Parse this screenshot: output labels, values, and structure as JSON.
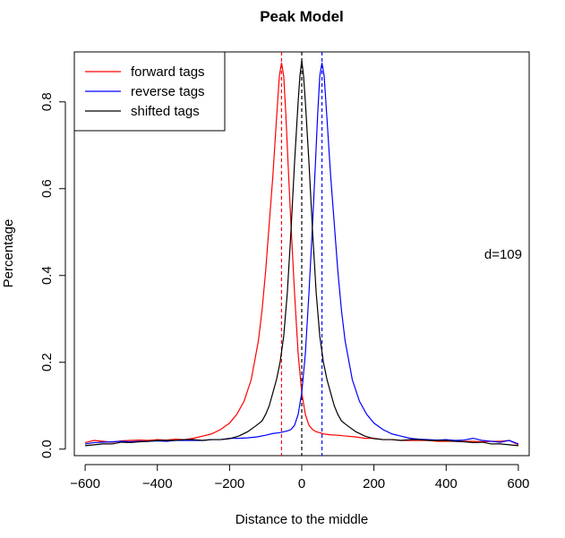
{
  "chart_data": {
    "type": "line",
    "title": "Peak Model",
    "xlabel": "Distance to the middle",
    "ylabel": "Percentage",
    "xlim": [
      -630,
      630
    ],
    "ylim": [
      -0.015,
      0.915
    ],
    "xticks": [
      -600,
      -400,
      -200,
      0,
      200,
      400,
      600
    ],
    "xtick_labels": [
      "−600",
      "−400",
      "−200",
      "0",
      "200",
      "400",
      "600"
    ],
    "yticks": [
      0.0,
      0.2,
      0.4,
      0.6,
      0.8
    ],
    "ytick_labels": [
      "0.0",
      "0.2",
      "0.4",
      "0.6",
      "0.8"
    ],
    "grid": false,
    "legend_position": "top-left",
    "annotation": "d=109",
    "series": [
      {
        "name": "forward tags",
        "color": "#ff0000",
        "x": [
          -600,
          -575,
          -550,
          -525,
          -500,
          -475,
          -450,
          -425,
          -400,
          -375,
          -350,
          -325,
          -300,
          -275,
          -250,
          -225,
          -200,
          -180,
          -160,
          -140,
          -120,
          -110,
          -100,
          -90,
          -80,
          -70,
          -62,
          -56,
          -50,
          -44,
          -38,
          -30,
          -20,
          -10,
          0,
          10,
          20,
          30,
          40,
          50,
          60,
          80,
          100,
          125,
          150,
          175,
          200,
          225,
          250,
          275,
          300,
          325,
          350,
          375,
          400,
          425,
          450,
          475,
          500,
          525,
          550,
          575,
          600
        ],
        "y": [
          0.015,
          0.02,
          0.018,
          0.016,
          0.019,
          0.02,
          0.021,
          0.02,
          0.022,
          0.021,
          0.023,
          0.022,
          0.025,
          0.03,
          0.035,
          0.045,
          0.06,
          0.08,
          0.11,
          0.16,
          0.25,
          0.32,
          0.41,
          0.52,
          0.63,
          0.76,
          0.86,
          0.89,
          0.86,
          0.77,
          0.66,
          0.52,
          0.36,
          0.22,
          0.13,
          0.08,
          0.055,
          0.045,
          0.04,
          0.038,
          0.035,
          0.033,
          0.032,
          0.03,
          0.028,
          0.025,
          0.025,
          0.022,
          0.022,
          0.02,
          0.02,
          0.02,
          0.02,
          0.018,
          0.018,
          0.018,
          0.018,
          0.018,
          0.017,
          0.018,
          0.018,
          0.02,
          0.01
        ]
      },
      {
        "name": "reverse tags",
        "color": "#0000ff",
        "x": [
          -600,
          -575,
          -550,
          -525,
          -500,
          -475,
          -450,
          -425,
          -400,
          -375,
          -350,
          -325,
          -300,
          -275,
          -250,
          -225,
          -200,
          -175,
          -150,
          -125,
          -100,
          -80,
          -60,
          -40,
          -30,
          -20,
          -10,
          0,
          10,
          20,
          30,
          38,
          44,
          50,
          56,
          62,
          70,
          80,
          90,
          100,
          110,
          120,
          140,
          160,
          180,
          200,
          225,
          250,
          275,
          300,
          325,
          350,
          375,
          400,
          425,
          450,
          475,
          500,
          525,
          550,
          575,
          600
        ],
        "y": [
          0.012,
          0.015,
          0.016,
          0.017,
          0.018,
          0.017,
          0.018,
          0.018,
          0.019,
          0.018,
          0.02,
          0.02,
          0.02,
          0.02,
          0.022,
          0.022,
          0.025,
          0.025,
          0.026,
          0.028,
          0.032,
          0.036,
          0.038,
          0.042,
          0.045,
          0.055,
          0.08,
          0.13,
          0.22,
          0.36,
          0.52,
          0.66,
          0.77,
          0.86,
          0.89,
          0.86,
          0.76,
          0.63,
          0.52,
          0.41,
          0.32,
          0.25,
          0.16,
          0.11,
          0.08,
          0.06,
          0.045,
          0.035,
          0.03,
          0.025,
          0.023,
          0.022,
          0.021,
          0.022,
          0.02,
          0.021,
          0.025,
          0.02,
          0.018,
          0.016,
          0.02,
          0.012
        ]
      },
      {
        "name": "shifted tags",
        "color": "#000000",
        "x": [
          -600,
          -575,
          -550,
          -525,
          -500,
          -475,
          -450,
          -425,
          -400,
          -375,
          -350,
          -325,
          -300,
          -275,
          -250,
          -225,
          -200,
          -175,
          -150,
          -125,
          -110,
          -100,
          -90,
          -80,
          -70,
          -60,
          -50,
          -40,
          -30,
          -20,
          -10,
          -5,
          0,
          5,
          10,
          20,
          30,
          40,
          50,
          60,
          70,
          80,
          90,
          100,
          110,
          125,
          150,
          175,
          200,
          225,
          250,
          275,
          300,
          325,
          350,
          375,
          400,
          425,
          450,
          475,
          500,
          525,
          550,
          575,
          600
        ],
        "y": [
          0.008,
          0.01,
          0.012,
          0.012,
          0.016,
          0.015,
          0.017,
          0.018,
          0.02,
          0.02,
          0.02,
          0.022,
          0.022,
          0.02,
          0.022,
          0.022,
          0.024,
          0.03,
          0.04,
          0.055,
          0.065,
          0.08,
          0.1,
          0.13,
          0.16,
          0.2,
          0.26,
          0.36,
          0.5,
          0.66,
          0.8,
          0.86,
          0.895,
          0.86,
          0.8,
          0.66,
          0.5,
          0.36,
          0.26,
          0.2,
          0.16,
          0.13,
          0.1,
          0.08,
          0.065,
          0.055,
          0.04,
          0.03,
          0.024,
          0.022,
          0.022,
          0.02,
          0.022,
          0.022,
          0.02,
          0.02,
          0.02,
          0.018,
          0.017,
          0.015,
          0.016,
          0.012,
          0.012,
          0.01,
          0.008
        ]
      }
    ],
    "vlines": [
      {
        "x": -56,
        "color": "#ff0000"
      },
      {
        "x": 0,
        "color": "#000000"
      },
      {
        "x": 56,
        "color": "#0000ff"
      }
    ]
  }
}
